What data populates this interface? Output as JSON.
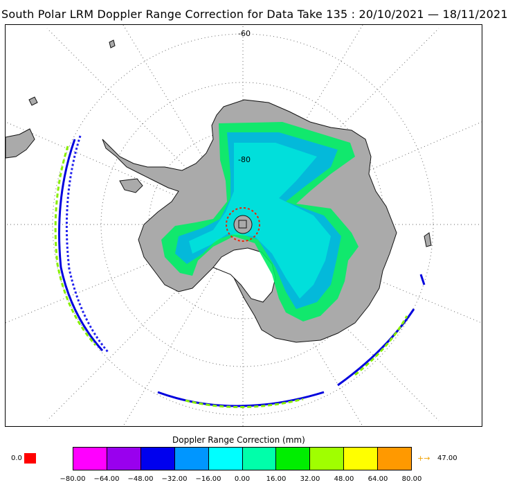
{
  "title": "South Polar LRM Doppler Range Correction for Data Take 135 : 20/10/2021 — 18/11/2021",
  "map": {
    "lat_labels": [
      "-60",
      "-80"
    ],
    "land_color": "#aaaaaa",
    "coast_color": "#000000",
    "grid": "dotted"
  },
  "legend": {
    "title": "Doppler Range Correction (mm)",
    "ticks": [
      "−80.00",
      "−64.00",
      "−48.00",
      "−32.00",
      "−16.00",
      "0.00",
      "16.00",
      "32.00",
      "48.00",
      "64.00",
      "80.00"
    ],
    "colors": [
      "#ff00ff",
      "#9900ee",
      "#0000ee",
      "#0096ff",
      "#00ffff",
      "#00ffaa",
      "#00ee00",
      "#a0ff00",
      "#ffff00",
      "#ff9900"
    ],
    "min_label": "0.0",
    "min_color": "#ff0000",
    "max_arrow": "→",
    "max_value": "47.00"
  }
}
